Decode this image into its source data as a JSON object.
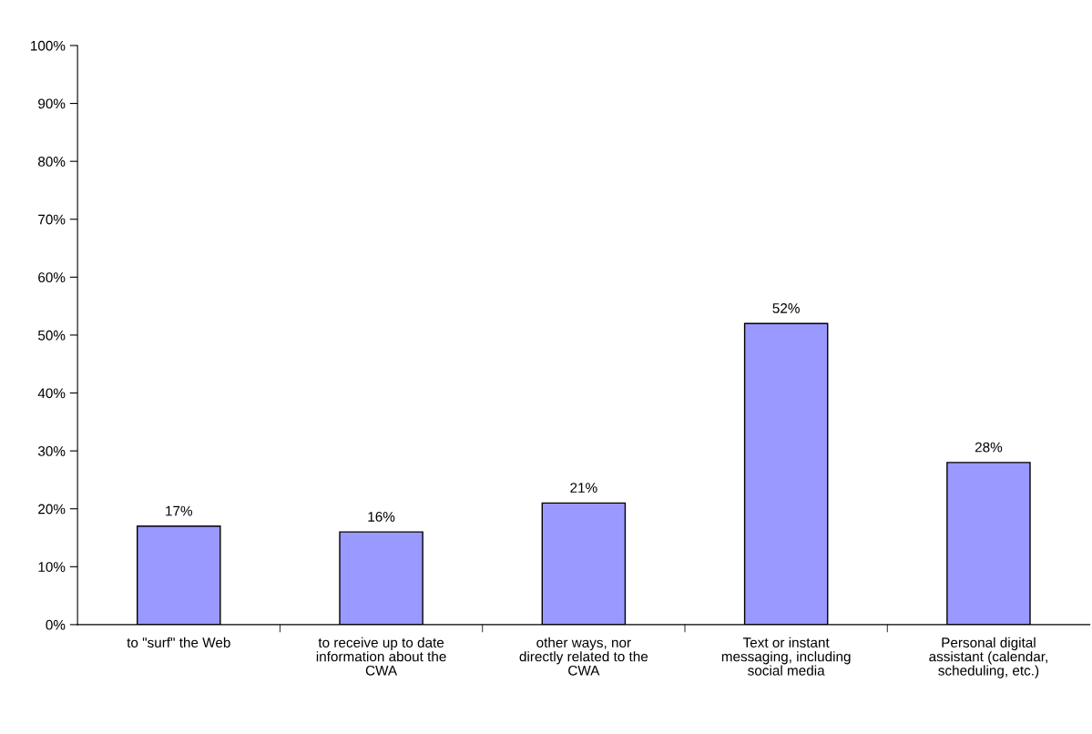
{
  "chart_data": {
    "type": "bar",
    "categories": [
      "to \"surf\" the Web",
      "to receive up to date\ninformation about the\nCWA",
      "other ways, nor\ndirectly related to the\nCWA",
      "Text or instant\nmessaging, including\nsocial media",
      "Personal digital\nassistant (calendar,\nscheduling, etc.)"
    ],
    "values": [
      17,
      16,
      21,
      52,
      28
    ],
    "value_labels": [
      "17%",
      "16%",
      "21%",
      "52%",
      "28%"
    ],
    "color": "#9999ff",
    "ylim": [
      0,
      100
    ],
    "yticks": [
      {
        "value": 0,
        "label": "0%"
      },
      {
        "value": 10,
        "label": "10%"
      },
      {
        "value": 20,
        "label": "20%"
      },
      {
        "value": 30,
        "label": "30%"
      },
      {
        "value": 40,
        "label": "40%"
      },
      {
        "value": 50,
        "label": "50%"
      },
      {
        "value": 60,
        "label": "60%"
      },
      {
        "value": 70,
        "label": "70%"
      },
      {
        "value": 80,
        "label": "80%"
      },
      {
        "value": 90,
        "label": "90%"
      },
      {
        "value": 100,
        "label": "100%"
      }
    ],
    "grid": false,
    "legend": false
  }
}
